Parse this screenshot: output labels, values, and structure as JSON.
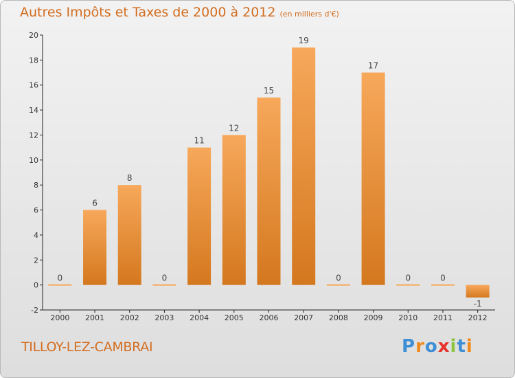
{
  "header": {
    "title": "Autres Impôts et Taxes de 2000 à 2012",
    "subtitle": "(en milliers d'€)"
  },
  "footer": {
    "commune": "TILLOY-LEZ-CAMBRAI",
    "brand": "Proxiti"
  },
  "colors": {
    "title": "#d36d1f",
    "bar_light": "#f7a85a",
    "bar_dark": "#d4781f"
  },
  "chart_data": {
    "type": "bar",
    "title": "Autres Impôts et Taxes de 2000 à 2012",
    "subtitle": "(en milliers d'€)",
    "categories": [
      "2000",
      "2001",
      "2002",
      "2003",
      "2004",
      "2005",
      "2006",
      "2007",
      "2008",
      "2009",
      "2010",
      "2011",
      "2012"
    ],
    "values": [
      0,
      6,
      8,
      0,
      11,
      12,
      15,
      19,
      0,
      17,
      0,
      0,
      -1
    ],
    "ylim": [
      -2,
      20
    ],
    "yticks": [
      -2,
      0,
      2,
      4,
      6,
      8,
      10,
      12,
      14,
      16,
      18,
      20
    ],
    "grid": false,
    "xlabel": "",
    "ylabel": ""
  }
}
